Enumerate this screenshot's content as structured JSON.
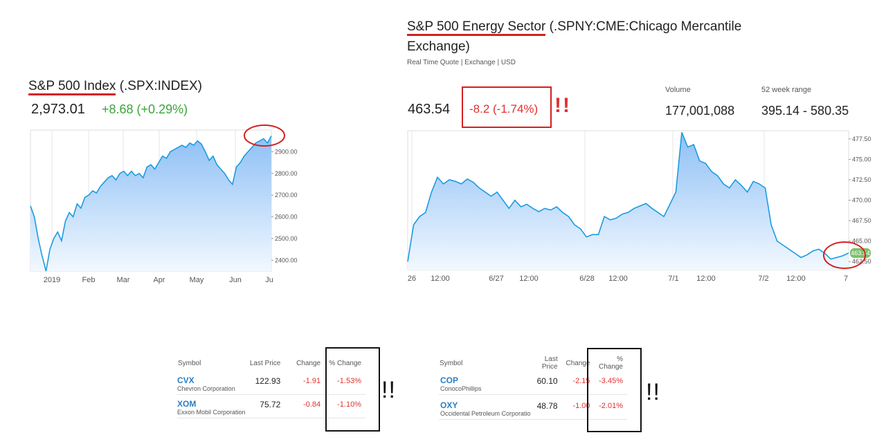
{
  "left": {
    "title_underlined": "S&P 500 Index",
    "title_rest": " (.SPX:INDEX)",
    "price": "2,973.01",
    "change": "+8.68 (+0.29%)"
  },
  "right": {
    "title_underlined": "S&P 500 Energy Sector",
    "title_rest": " (.SPNY:CME:Chicago Mercantile",
    "title_line2": "Exchange)",
    "subtitle": "Real Time Quote | Exchange | USD",
    "price": "463.54",
    "change": "-8.2 (-1.74%)",
    "exclaim": "!!",
    "volume_label": "Volume",
    "volume": "177,001,088",
    "range_label": "52 week range",
    "range": "395.14 - 580.35",
    "current_tag": "463.54"
  },
  "colors": {
    "line": "#1a9be0",
    "fill_top": "#8ec0f5",
    "fill_bottom": "#f2f8ff",
    "up": "#3aa53a",
    "down": "#e03030",
    "tag": "#7cbf6a",
    "annotation": "#d32020"
  },
  "chart_data": [
    {
      "type": "area",
      "title": "",
      "x_tick_labels": [
        "2019",
        "Feb",
        "Mar",
        "Apr",
        "May",
        "Jun",
        "Ju"
      ],
      "y_tick_labels": [
        "2900.00",
        "2800.00",
        "2700.00",
        "2600.00",
        "2500.00",
        "2400.00"
      ],
      "ylim": [
        2350,
        3000
      ],
      "grid": true,
      "series": [
        {
          "values": [
            2650,
            2600,
            2500,
            2420,
            2350,
            2450,
            2500,
            2530,
            2490,
            2580,
            2620,
            2600,
            2660,
            2640,
            2690,
            2700,
            2720,
            2710,
            2740,
            2760,
            2780,
            2790,
            2770,
            2800,
            2810,
            2790,
            2810,
            2790,
            2800,
            2780,
            2830,
            2840,
            2820,
            2850,
            2880,
            2870,
            2900,
            2910,
            2920,
            2930,
            2920,
            2940,
            2930,
            2950,
            2935,
            2900,
            2860,
            2880,
            2840,
            2820,
            2800,
            2770,
            2750,
            2830,
            2850,
            2880,
            2900,
            2920,
            2940,
            2950,
            2960,
            2940,
            2973
          ]
        }
      ]
    },
    {
      "type": "area",
      "title": "",
      "x_tick_labels": [
        "26",
        "12:00",
        "6/27",
        "12:00",
        "6/28",
        "12:00",
        "7/1",
        "12:00",
        "7/2",
        "12:00",
        "7"
      ],
      "y_tick_labels": [
        "477.50",
        "475.00",
        "472.50",
        "470.00",
        "467.50",
        "465.00",
        "462.50"
      ],
      "ylim": [
        461.5,
        478.5
      ],
      "grid": true,
      "series": [
        {
          "values": [
            462.5,
            467,
            468,
            468.5,
            471,
            472.8,
            472,
            472.5,
            472.3,
            472,
            472.6,
            472.2,
            471.5,
            471,
            470.5,
            471,
            470,
            469,
            470,
            469.2,
            469.5,
            469,
            468.6,
            469,
            468.8,
            469.2,
            468.5,
            468,
            467,
            466.5,
            465.5,
            465.8,
            465.8,
            468,
            467.6,
            467.8,
            468.3,
            468.5,
            469,
            469.3,
            469.6,
            469,
            468.5,
            468,
            469.5,
            471,
            478.3,
            476.5,
            476.8,
            474.8,
            474.5,
            473.5,
            473,
            472,
            471.5,
            472.5,
            471.8,
            471,
            472.3,
            472,
            471.5,
            467,
            465,
            464.5,
            464,
            463.5,
            463,
            463.3,
            463.8,
            464,
            463.5,
            462.8,
            463,
            463.2,
            463.54
          ]
        }
      ]
    }
  ],
  "tables": [
    {
      "headers": [
        "Symbol",
        "Last Price",
        "Change",
        "% Change"
      ],
      "rows": [
        {
          "symbol": "CVX",
          "name": "Chevron Corporation",
          "last": "122.93",
          "change": "-1.91",
          "pct": "-1.53%"
        },
        {
          "symbol": "XOM",
          "name": "Exxon Mobil Corporation",
          "last": "75.72",
          "change": "-0.84",
          "pct": "-1.10%"
        }
      ],
      "exclaim": "!!"
    },
    {
      "headers": [
        "Symbol",
        "Last Price",
        "Change",
        "% Change"
      ],
      "rows": [
        {
          "symbol": "COP",
          "name": "ConocoPhillips",
          "last": "60.10",
          "change": "-2.15",
          "pct": "-3.45%"
        },
        {
          "symbol": "OXY",
          "name": "Occidental Petroleum Corporatio",
          "last": "48.78",
          "change": "-1.00",
          "pct": "-2.01%"
        }
      ],
      "exclaim": "!!"
    }
  ]
}
